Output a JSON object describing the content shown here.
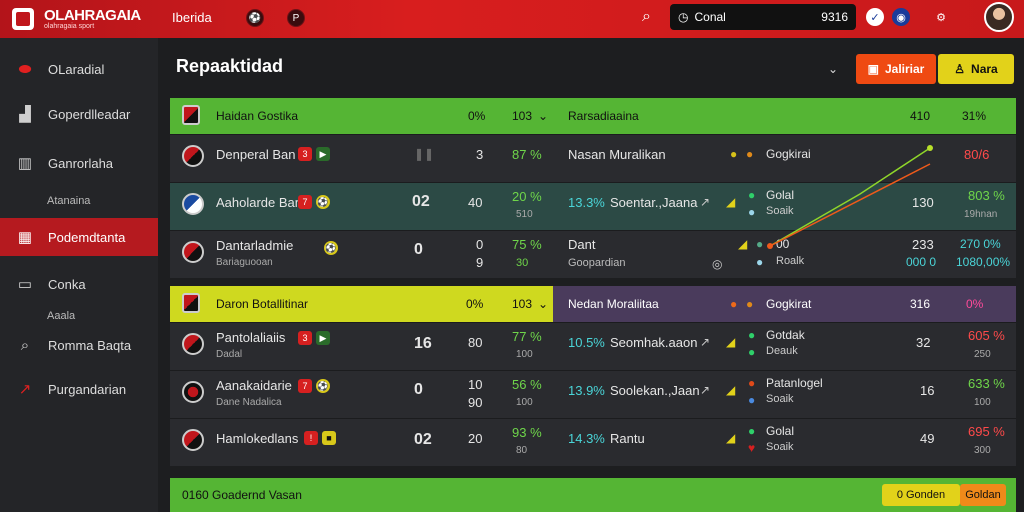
{
  "app": {
    "title": "OLAHRAGAIA",
    "tagline": "olahragaia sport",
    "nav": "Iberida",
    "nav_icons": [
      "ball-icon",
      "p-icon"
    ],
    "search_value": "Conal",
    "search_score": "9316"
  },
  "sidebar": {
    "items": [
      {
        "label": "OLaradial",
        "icon": "flag-icon"
      },
      {
        "label": "Goperdlleadar",
        "icon": "stadium-icon"
      },
      {
        "label": "Ganrorlaha",
        "icon": "chart-icon"
      },
      {
        "label": "Atanaina",
        "icon": "none",
        "sub": true
      },
      {
        "label": "Podemdtanta",
        "icon": "calendar-icon",
        "active": true
      },
      {
        "label": "Conka",
        "icon": "box-icon"
      },
      {
        "label": "Aaala",
        "icon": "none",
        "sub": true
      },
      {
        "label": "Romma Baqta",
        "icon": "search-icon"
      },
      {
        "label": "Purgandarian",
        "icon": "arrow-icon"
      }
    ]
  },
  "page": {
    "title": "Repaaktidad",
    "btn1": "Jaliriar",
    "btn2": "Nara"
  },
  "section1": {
    "head_left": "Haidan Gostika",
    "head_c1": "0%",
    "head_c2": "103",
    "head_mid": "Rarsadiaaina",
    "head_r1": "410",
    "head_r2": "31%",
    "rows": [
      {
        "team": "Denperal Ban",
        "sub": "",
        "c1": "3",
        "c2": "87 %",
        "c2sub": "",
        "mid": "Nasan Muralikan",
        "mid2": "",
        "right1": "Gogkirai",
        "right2": "",
        "val": "",
        "pct": "80/6",
        "pct2": ""
      },
      {
        "team": "Aaholarde Ban",
        "sub": "",
        "big": "02",
        "c1": "40",
        "c2": "20 %",
        "c2sub": "510",
        "mid": "13.3%",
        "mid2": "Soentar.,Jaana",
        "right1": "Golal",
        "right2": "Soaik",
        "val": "130",
        "pct": "803 %",
        "pct2": "19hnan"
      },
      {
        "team": "Dantarladmie",
        "sub": "Bariaguooan",
        "big": "0",
        "c1": "0",
        "c1b": "9",
        "c2": "75 %",
        "c2sub": "30",
        "mid": "Dant",
        "mid2": "Goopardian",
        "right1": "00",
        "right2": "Roalk",
        "val": "233",
        "val2": "000 0",
        "pct": "270 0%",
        "pct2": "1080,00%"
      }
    ]
  },
  "section2": {
    "head_left": "Daron Botallitinar",
    "head_c1": "0%",
    "head_c2": "103",
    "head_mid": "Nedan Moraliitaa",
    "head_r1": "Gogkirat",
    "head_r2": "316",
    "head_r3": "0%",
    "rows": [
      {
        "team": "Pantolaliaiis",
        "sub": "Dadal",
        "big": "16",
        "c1": "80",
        "c2": "77 %",
        "c2sub": "100",
        "mid": "10.5%",
        "mid2": "Seomhak.aaon",
        "right1": "Gotdak",
        "right2": "Deauk",
        "val": "32",
        "pct": "605 %",
        "pct2": "250"
      },
      {
        "team": "Aanakaidarie",
        "sub": "Dane Nadalica",
        "big": "0",
        "c1": "10",
        "c1b": "90",
        "c2": "56 %",
        "c2sub": "100",
        "mid": "13.9%",
        "mid2": "Soolekan.,Jaan",
        "right1": "Patanlogel",
        "right2": "Soaik",
        "val": "16",
        "pct": "633 %",
        "pct2": "100"
      },
      {
        "team": "Hamlokedlans",
        "sub": "",
        "big": "02",
        "c1": "20",
        "c2": "93 %",
        "c2sub": "80",
        "mid": "14.3%",
        "mid2": "Rantu",
        "right1": "Golal",
        "right2": "Soaik",
        "val": "49",
        "pct": "695 %",
        "pct2": "300"
      }
    ]
  },
  "section3": {
    "head_left": "0160 Goadernd Vasan",
    "btn1": "0 Gonden",
    "btn2": "Goldan"
  },
  "colors": {
    "accent": "#c8191b",
    "green": "#55b534",
    "yellow": "#cfd91f",
    "purple": "#4a3b5c"
  }
}
